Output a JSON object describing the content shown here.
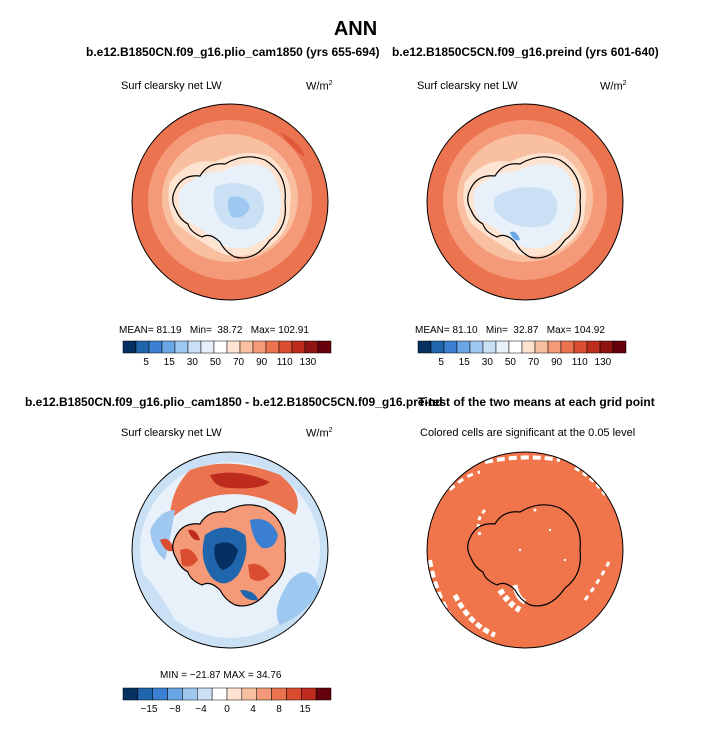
{
  "page": {
    "title": "ANN"
  },
  "panels": {
    "top_left": {
      "case_title": "b.e12.B1850CN.f09_g16.plio_cam1850 (yrs 655-694)",
      "variable": "Surf clearsky net LW",
      "units_base": "W/m",
      "units_exp": "2",
      "stats": {
        "mean_label": "MEAN=",
        "mean": "81.19",
        "min_label": "Min=",
        "min": "38.72",
        "max_label": "Max=",
        "max": "102.91"
      }
    },
    "top_right": {
      "case_title": "b.e12.B1850C5CN.f09_g16.preind (yrs 601-640)",
      "variable": "Surf clearsky net LW",
      "units_base": "W/m",
      "units_exp": "2",
      "stats": {
        "mean_label": "MEAN=",
        "mean": "81.10",
        "min_label": "Min=",
        "min": "32.87",
        "max_label": "Max=",
        "max": "104.92"
      }
    },
    "bottom_left": {
      "case_title": "b.e12.B1850CN.f09_g16.plio_cam1850 - b.e12.B1850C5CN.f09_g16.preind",
      "variable": "Surf clearsky net LW",
      "units_base": "W/m",
      "units_exp": "2",
      "stats_text": "MIN = −21.87  MAX =  34.76"
    },
    "bottom_right": {
      "case_title": "T-test of the two means at each grid point",
      "subtitle": "Colored cells are significant at the 0.05 level"
    }
  },
  "chart_data": [
    {
      "type": "heatmap",
      "title": "Surf clearsky net LW",
      "projection": "south-polar-stereographic",
      "units": "W/m2",
      "stats": {
        "mean": 81.19,
        "min": 38.72,
        "max": 102.91
      },
      "colorbar": {
        "levels": [
          5,
          15,
          30,
          50,
          70,
          90,
          110,
          130
        ],
        "tick_labels": [
          "5",
          "15",
          "30",
          "50",
          "70",
          "90",
          "110",
          "130"
        ],
        "colors": [
          "#053061",
          "#2166ac",
          "#3a7fd1",
          "#6aa6e6",
          "#9ec8f0",
          "#c9e0f5",
          "#e8f1fa",
          "#ffffff",
          "#fde3d0",
          "#f9bfa1",
          "#f49a78",
          "#ec7350",
          "#db4d30",
          "#bd2c1d",
          "#8e1411",
          "#67000d"
        ]
      }
    },
    {
      "type": "heatmap",
      "title": "Surf clearsky net LW",
      "projection": "south-polar-stereographic",
      "units": "W/m2",
      "stats": {
        "mean": 81.1,
        "min": 32.87,
        "max": 104.92
      },
      "colorbar": {
        "levels": [
          5,
          15,
          30,
          50,
          70,
          90,
          110,
          130
        ],
        "tick_labels": [
          "5",
          "15",
          "30",
          "50",
          "70",
          "90",
          "110",
          "130"
        ],
        "colors": [
          "#053061",
          "#2166ac",
          "#3a7fd1",
          "#6aa6e6",
          "#9ec8f0",
          "#c9e0f5",
          "#e8f1fa",
          "#ffffff",
          "#fde3d0",
          "#f9bfa1",
          "#f49a78",
          "#ec7350",
          "#db4d30",
          "#bd2c1d",
          "#8e1411",
          "#67000d"
        ]
      }
    },
    {
      "type": "heatmap",
      "title": "Surf clearsky net LW",
      "projection": "south-polar-stereographic",
      "units": "W/m2",
      "stats": {
        "min": -21.87,
        "max": 34.76
      },
      "colorbar": {
        "levels": [
          -15,
          -8,
          -4,
          0,
          4,
          8,
          15
        ],
        "tick_labels": [
          "−15",
          "−8",
          "−4",
          "0",
          "4",
          "8",
          "15"
        ],
        "colors": [
          "#053061",
          "#2166ac",
          "#3a7fd1",
          "#6aa6e6",
          "#9ec8f0",
          "#c9e0f5",
          "#ffffff",
          "#fde3d0",
          "#f9bfa1",
          "#f49a78",
          "#ec7350",
          "#db4d30",
          "#bd2c1d",
          "#67000d"
        ]
      }
    },
    {
      "type": "heatmap",
      "title": "T-test of the two means at each grid point",
      "projection": "south-polar-stereographic",
      "significance_level": 0.05,
      "colors": {
        "significant": "#f0754a",
        "not_significant": "#ffffff"
      }
    }
  ]
}
